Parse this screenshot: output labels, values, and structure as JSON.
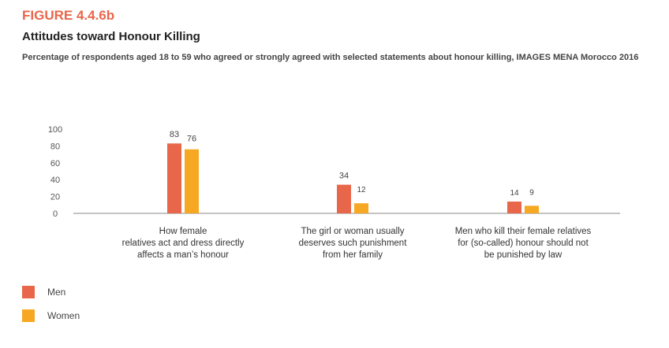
{
  "figure_label": "FIGURE 4.4.6b",
  "title": "Attitudes toward Honour Killing",
  "subtitle": "Percentage of respondents aged 18 to 59 who agreed or strongly agreed with selected statements about honour killing, IMAGES MENA Morocco 2016",
  "colors": {
    "men": "#e8674a",
    "women": "#f7a823",
    "axis": "#888888"
  },
  "chart_data": {
    "type": "bar",
    "categories": [
      [
        "How female",
        "relatives act and dress directly",
        "affects a man’s honour"
      ],
      [
        "The girl or woman usually",
        "deserves such punishment",
        "from her family"
      ],
      [
        "Men who kill their female relatives",
        "for (so-called) honour should not",
        "be punished by law"
      ]
    ],
    "series": [
      {
        "name": "Men",
        "values": [
          83,
          34,
          14
        ]
      },
      {
        "name": "Women",
        "values": [
          76,
          12,
          9
        ]
      }
    ],
    "yticks": [
      0,
      20,
      40,
      60,
      80,
      100
    ],
    "ylim": [
      0,
      100
    ],
    "grid": false,
    "legend_position": "bottom-left"
  },
  "legend": [
    {
      "label": "Men"
    },
    {
      "label": "Women"
    }
  ]
}
